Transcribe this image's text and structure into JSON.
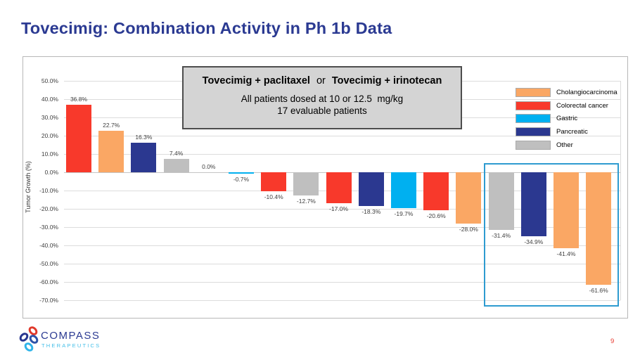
{
  "slide": {
    "title": "Tovecimig: Combination Activity in Ph 1b Data",
    "page_number": "9"
  },
  "logo": {
    "name": "COMPASS",
    "tagline": "THERAPEUTICS"
  },
  "annotation_box": {
    "combo_left": "Tovecimig + paclitaxel",
    "conjunction": "or",
    "combo_right": "Tovecimig + irinotecan",
    "dosing": "All patients dosed at 10 or 12.5  mg/kg",
    "evaluable": "17 evaluable patients"
  },
  "colors": {
    "title_blue": "#2B3A92",
    "highlight_box_blue": "#2E9BD0",
    "page_number_red": "#E8392E",
    "logo_light_blue": "#45BFE8"
  },
  "chart_data": {
    "type": "bar",
    "subtype": "waterfall",
    "title": "",
    "xlabel": "",
    "ylabel": "Tumor Growth (%)",
    "ylim": [
      -70,
      50
    ],
    "grid": true,
    "legend_position": "top-right",
    "yticks": [
      {
        "value": 50,
        "label": "50.0%"
      },
      {
        "value": 40,
        "label": "40.0%"
      },
      {
        "value": 30,
        "label": "30.0%"
      },
      {
        "value": 20,
        "label": "20.0%"
      },
      {
        "value": 10,
        "label": "10.0%"
      },
      {
        "value": 0,
        "label": "0.0%"
      },
      {
        "value": -10,
        "label": "-10.0%"
      },
      {
        "value": -20,
        "label": "-20.0%"
      },
      {
        "value": -30,
        "label": "-30.0%"
      },
      {
        "value": -40,
        "label": "-40.0%"
      },
      {
        "value": -50,
        "label": "-50.0%"
      },
      {
        "value": -60,
        "label": "-60.0%"
      },
      {
        "value": -70,
        "label": "-70.0%"
      }
    ],
    "legend": [
      {
        "label": "Cholangiocarcinoma",
        "color": "#FAA764"
      },
      {
        "label": "Colorectal cancer",
        "color": "#F8392B"
      },
      {
        "label": "Gastric",
        "color": "#00B0F0"
      },
      {
        "label": "Pancreatic",
        "color": "#2B3890"
      },
      {
        "label": "Other",
        "color": "#BFBFBF"
      }
    ],
    "bars": [
      {
        "value": 36.8,
        "label": "36.8%",
        "category": "Colorectal cancer"
      },
      {
        "value": 22.7,
        "label": "22.7%",
        "category": "Cholangiocarcinoma"
      },
      {
        "value": 16.3,
        "label": "16.3%",
        "category": "Pancreatic"
      },
      {
        "value": 7.4,
        "label": "7.4%",
        "category": "Other"
      },
      {
        "value": 0.0,
        "label": "0.0%",
        "category": null
      },
      {
        "value": -0.7,
        "label": "-0.7%",
        "category": "Gastric"
      },
      {
        "value": -10.4,
        "label": "-10.4%",
        "category": "Colorectal cancer"
      },
      {
        "value": -12.7,
        "label": "-12.7%",
        "category": "Other"
      },
      {
        "value": -17.0,
        "label": "-17.0%",
        "category": "Colorectal cancer"
      },
      {
        "value": -18.3,
        "label": "-18.3%",
        "category": "Pancreatic"
      },
      {
        "value": -19.7,
        "label": "-19.7%",
        "category": "Gastric"
      },
      {
        "value": -20.6,
        "label": "-20.6%",
        "category": "Colorectal cancer"
      },
      {
        "value": -28.0,
        "label": "-28.0%",
        "category": "Cholangiocarcinoma"
      },
      {
        "value": -31.4,
        "label": "-31.4%",
        "category": "Other"
      },
      {
        "value": -34.9,
        "label": "-34.9%",
        "category": "Pancreatic"
      },
      {
        "value": -41.4,
        "label": "-41.4%",
        "category": "Cholangiocarcinoma"
      },
      {
        "value": -61.6,
        "label": "-61.6%",
        "category": "Cholangiocarcinoma"
      }
    ],
    "highlight_box": {
      "from_bar_index": 13,
      "to_bar_index": 16,
      "border_color": "#2E9BD0"
    }
  }
}
